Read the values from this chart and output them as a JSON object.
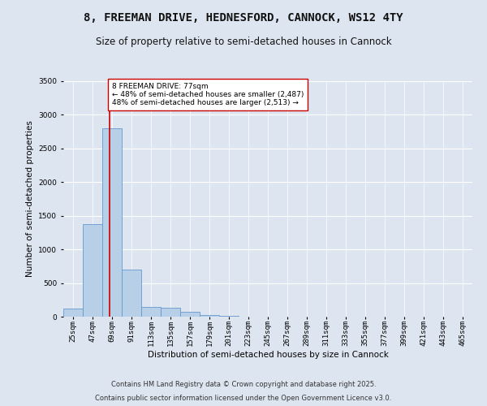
{
  "title": "8, FREEMAN DRIVE, HEDNESFORD, CANNOCK, WS12 4TY",
  "subtitle": "Size of property relative to semi-detached houses in Cannock",
  "xlabel": "Distribution of semi-detached houses by size in Cannock",
  "ylabel": "Number of semi-detached properties",
  "footnote1": "Contains HM Land Registry data © Crown copyright and database right 2025.",
  "footnote2": "Contains public sector information licensed under the Open Government Licence v3.0.",
  "bin_edges": [
    25,
    47,
    69,
    91,
    113,
    135,
    157,
    179,
    201,
    223,
    245,
    267,
    289,
    311,
    333,
    355,
    377,
    399,
    421,
    443,
    465
  ],
  "bar_heights": [
    120,
    1380,
    2800,
    700,
    150,
    130,
    75,
    30,
    10,
    5,
    3,
    2,
    1,
    1,
    0,
    0,
    0,
    0,
    0,
    0
  ],
  "bar_color": "#b8cfe8",
  "bar_edge_color": "#6699cc",
  "property_size": 77,
  "property_label": "8 FREEMAN DRIVE: 77sqm",
  "pct_smaller": 48,
  "pct_smaller_n": 2487,
  "pct_larger": 48,
  "pct_larger_n": 2513,
  "red_line_color": "#cc0000",
  "annotation_box_color": "#ffffff",
  "annotation_box_edge_color": "#cc0000",
  "ylim": [
    0,
    3500
  ],
  "background_color": "#dde6f0",
  "plot_bg_color": "#dde6f0",
  "grid_color": "#ffffff",
  "title_fontsize": 10,
  "subtitle_fontsize": 8.5,
  "axis_label_fontsize": 7.5,
  "tick_fontsize": 6.5,
  "annotation_fontsize": 6.5,
  "footnote_fontsize": 6
}
